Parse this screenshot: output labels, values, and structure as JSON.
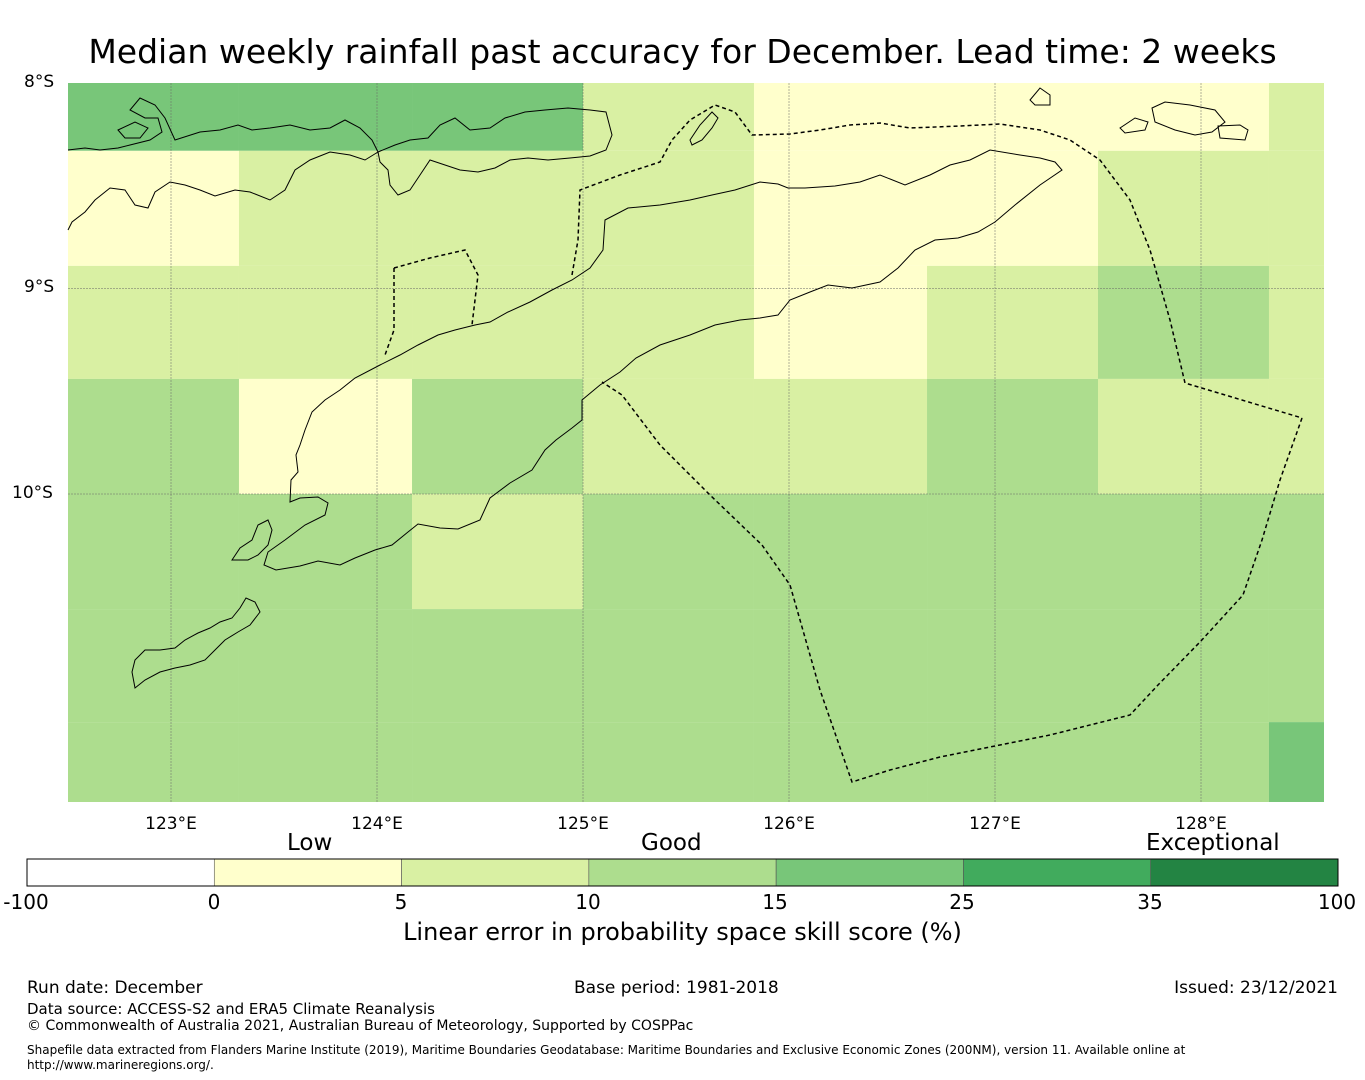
{
  "title": "Median weekly rainfall past accuracy for December. Lead time: 2 weeks",
  "lat_labels": [
    "8°S",
    "9°S",
    "10°S"
  ],
  "lon_labels": [
    "123°E",
    "124°E",
    "125°E",
    "126°E",
    "127°E",
    "128°E"
  ],
  "map_grid": {
    "lon_edges": [
      122.5,
      123.33,
      124.17,
      125.0,
      125.83,
      126.67,
      127.5,
      128.33,
      128.6
    ],
    "lat_edges": [
      -8.0,
      -8.33,
      -8.89,
      -9.44,
      -10.0,
      -10.56,
      -11.11,
      -11.5
    ],
    "cells": [
      [
        "c25",
        "c25",
        "c25",
        "c10",
        "c5",
        "c5",
        "c5",
        "c10"
      ],
      [
        "c5",
        "c10",
        "c10",
        "c10",
        "c5",
        "c5",
        "c10",
        "c10"
      ],
      [
        "c10",
        "c10",
        "c10",
        "c10",
        "c5",
        "c10",
        "c15",
        "c10"
      ],
      [
        "c15",
        "c5",
        "c15",
        "c10",
        "c10",
        "c15",
        "c10",
        "c10"
      ],
      [
        "c15",
        "c15",
        "c10",
        "c15",
        "c15",
        "c15",
        "c15",
        "c15"
      ],
      [
        "c15",
        "c15",
        "c15",
        "c15",
        "c15",
        "c15",
        "c15",
        "c15"
      ],
      [
        "c15",
        "c15",
        "c15",
        "c15",
        "c15",
        "c15",
        "c15",
        "c25"
      ]
    ]
  },
  "colors": {
    "cneg": "#ffffff",
    "c5": "#ffffcc",
    "c10": "#d9f0a3",
    "c15": "#addd8e",
    "c25": "#78c679",
    "c35": "#41ab5d",
    "c100": "#238443",
    "coast": "#000000"
  },
  "colorbar": {
    "categories": [
      "Low",
      "Good",
      "Exceptional"
    ],
    "ticks": [
      "-100",
      "0",
      "5",
      "10",
      "15",
      "25",
      "35",
      "100"
    ],
    "bins": [
      "cneg",
      "c5",
      "c10",
      "c15",
      "c25",
      "c35",
      "c100"
    ],
    "label": "Linear error in probability space skill score (%)"
  },
  "footer": {
    "run_date": "Run date: December",
    "base_period": "Base period: 1981-2018",
    "issued": "Issued: 23/12/2021",
    "data_source": "Data source: ACCESS-S2 and ERA5 Climate Reanalysis",
    "copyright": "© Commonwealth of Australia 2021, Australian Bureau of Meteorology, Supported by COSPPac",
    "shapefile": "Shapefile data extracted from Flanders Marine Institute (2019), Maritime Boundaries Geodatabase: Maritime Boundaries and Exclusive Economic Zones (200NM), version 11. Available online at http://www.marineregions.org/."
  }
}
